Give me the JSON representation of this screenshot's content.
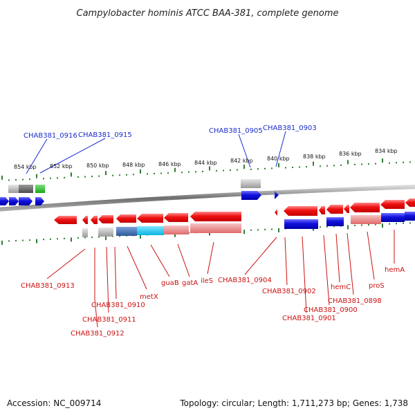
{
  "title": "Campylobacter hominis ATCC BAA-381, complete genome",
  "accession": "Accession: NC_009714",
  "topology": "Topology: circular; Length: 1,711,273 bp; Genes: 1,738",
  "ticks": [
    "854 kbp",
    "852 kbp",
    "850 kbp",
    "848 kbp",
    "846 kbp",
    "844 kbp",
    "842 kbp",
    "840 kbp",
    "838 kbp",
    "836 kbp",
    "834 kbp"
  ],
  "top_labels": [
    "CHAB381_0916",
    "CHAB381_0915",
    "CHAB381_0905",
    "CHAB381_0903"
  ],
  "bottom_labels": [
    "CHAB381_0913",
    "CHAB381_0910",
    "CHAB381_0911",
    "CHAB381_0912",
    "metX",
    "guaB",
    "gatA",
    "ileS",
    "CHAB381_0904",
    "CHAB381_0902",
    "CHAB381_0901",
    "CHAB381_0900",
    "hemC",
    "CHAB381_0898",
    "proS",
    "hemA"
  ],
  "colors": {
    "forward_gene": "#1111dd",
    "reverse_gene": "#ee1111",
    "top_label": "#1a2dcc",
    "bottom_label": "#cc1111",
    "backbone": "#808080",
    "tick": "#2e7d32"
  }
}
